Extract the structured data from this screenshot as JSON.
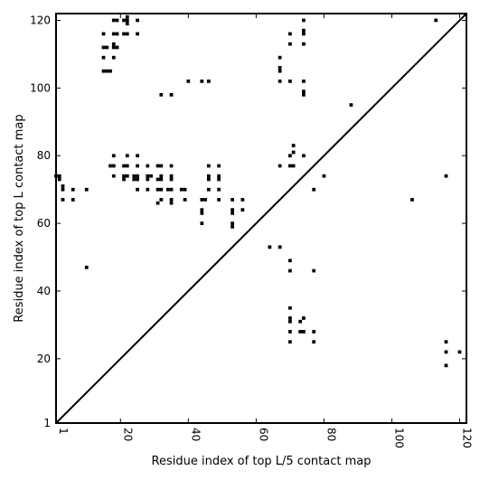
{
  "chart_data": {
    "type": "scatter",
    "title": "",
    "xlabel": "Residue index of top L/5 contact map",
    "ylabel": "Residue index of top L contact map",
    "xlim": [
      1,
      122
    ],
    "ylim": [
      1,
      122
    ],
    "xticks": [
      1,
      20,
      40,
      60,
      80,
      100,
      120
    ],
    "yticks": [
      1,
      20,
      40,
      60,
      80,
      100,
      120
    ],
    "xtick_labels": [
      "1",
      "20",
      "40",
      "60",
      "80",
      "100",
      "120"
    ],
    "ytick_labels": [
      "1",
      "20",
      "40",
      "60",
      "80",
      "100",
      "120"
    ],
    "xtick_rotation": 90,
    "marker": "square",
    "marker_color": "#000000",
    "diagonal_line": {
      "from": [
        1,
        1
      ],
      "to": [
        122,
        122
      ]
    },
    "grid": false,
    "legend": "none",
    "points": [
      [
        113,
        120
      ],
      [
        74,
        120
      ],
      [
        70,
        116
      ],
      [
        74,
        117
      ],
      [
        74,
        116
      ],
      [
        70,
        113
      ],
      [
        74,
        113
      ],
      [
        67,
        109
      ],
      [
        67,
        106
      ],
      [
        67,
        105
      ],
      [
        67,
        102
      ],
      [
        70,
        102
      ],
      [
        74,
        102
      ],
      [
        74,
        99
      ],
      [
        74,
        98
      ],
      [
        88,
        95
      ],
      [
        71,
        83
      ],
      [
        71,
        81
      ],
      [
        70,
        80
      ],
      [
        74,
        80
      ],
      [
        67,
        77
      ],
      [
        70,
        77
      ],
      [
        71,
        77
      ],
      [
        80,
        74
      ],
      [
        77,
        70
      ],
      [
        106,
        67
      ],
      [
        64,
        53
      ],
      [
        67,
        53
      ],
      [
        70,
        49
      ],
      [
        70,
        46
      ],
      [
        77,
        46
      ],
      [
        70,
        35
      ],
      [
        70,
        32
      ],
      [
        74,
        32
      ],
      [
        70,
        31
      ],
      [
        73,
        31
      ],
      [
        70,
        28
      ],
      [
        73,
        28
      ],
      [
        74,
        28
      ],
      [
        77,
        28
      ],
      [
        70,
        25
      ],
      [
        77,
        25
      ],
      [
        116,
        74
      ],
      [
        116,
        25
      ],
      [
        116,
        22
      ],
      [
        120,
        22
      ],
      [
        116,
        18
      ],
      [
        18,
        120
      ],
      [
        19,
        120
      ],
      [
        21,
        120
      ],
      [
        22,
        121
      ],
      [
        22,
        120
      ],
      [
        22,
        119
      ],
      [
        25,
        120
      ],
      [
        18,
        116
      ],
      [
        19,
        116
      ],
      [
        21,
        116
      ],
      [
        22,
        116
      ],
      [
        25,
        116
      ],
      [
        15,
        116
      ],
      [
        18,
        113
      ],
      [
        18,
        112
      ],
      [
        19,
        112
      ],
      [
        15,
        112
      ],
      [
        16,
        112
      ],
      [
        15,
        109
      ],
      [
        18,
        109
      ],
      [
        15,
        105
      ],
      [
        16,
        105
      ],
      [
        17,
        105
      ],
      [
        32,
        98
      ],
      [
        35,
        98
      ],
      [
        40,
        102
      ],
      [
        44,
        102
      ],
      [
        46,
        102
      ],
      [
        18,
        80
      ],
      [
        22,
        80
      ],
      [
        25,
        80
      ],
      [
        17,
        77
      ],
      [
        18,
        77
      ],
      [
        21,
        77
      ],
      [
        22,
        77
      ],
      [
        25,
        77
      ],
      [
        28,
        77
      ],
      [
        31,
        77
      ],
      [
        32,
        77
      ],
      [
        35,
        77
      ],
      [
        46,
        77
      ],
      [
        49,
        77
      ],
      [
        18,
        74
      ],
      [
        21,
        74
      ],
      [
        22,
        74
      ],
      [
        24,
        74
      ],
      [
        25,
        74
      ],
      [
        28,
        74
      ],
      [
        29,
        74
      ],
      [
        32,
        74
      ],
      [
        35,
        74
      ],
      [
        46,
        74
      ],
      [
        49,
        74
      ],
      [
        21,
        73
      ],
      [
        24,
        73
      ],
      [
        25,
        73
      ],
      [
        28,
        73
      ],
      [
        31,
        73
      ],
      [
        32,
        73
      ],
      [
        35,
        73
      ],
      [
        46,
        73
      ],
      [
        49,
        73
      ],
      [
        1,
        74
      ],
      [
        2,
        74
      ],
      [
        2,
        73
      ],
      [
        3,
        71
      ],
      [
        3,
        70
      ],
      [
        6,
        70
      ],
      [
        10,
        70
      ],
      [
        25,
        70
      ],
      [
        28,
        70
      ],
      [
        31,
        70
      ],
      [
        32,
        70
      ],
      [
        34,
        70
      ],
      [
        35,
        70
      ],
      [
        38,
        70
      ],
      [
        39,
        70
      ],
      [
        46,
        70
      ],
      [
        49,
        70
      ],
      [
        3,
        67
      ],
      [
        6,
        67
      ],
      [
        32,
        67
      ],
      [
        35,
        67
      ],
      [
        39,
        67
      ],
      [
        44,
        67
      ],
      [
        45,
        67
      ],
      [
        49,
        67
      ],
      [
        53,
        67
      ],
      [
        56,
        67
      ],
      [
        31,
        66
      ],
      [
        35,
        66
      ],
      [
        44,
        64
      ],
      [
        44,
        63
      ],
      [
        53,
        64
      ],
      [
        53,
        63
      ],
      [
        56,
        64
      ],
      [
        44,
        60
      ],
      [
        53,
        60
      ],
      [
        53,
        59
      ],
      [
        10,
        47
      ]
    ]
  }
}
